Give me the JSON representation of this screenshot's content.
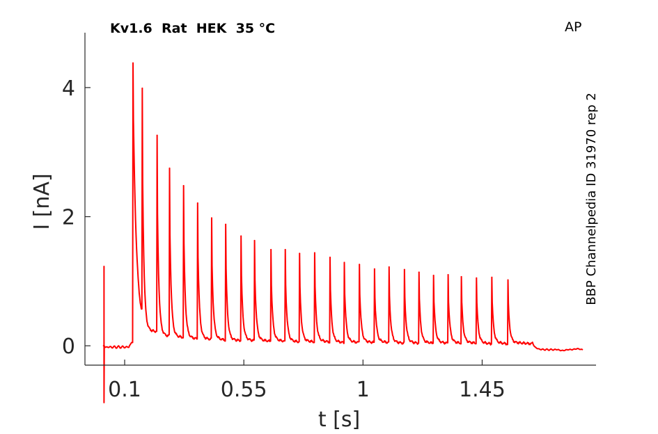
{
  "chart_data": {
    "type": "line",
    "title": "Kv1.6  Rat  HEK  35 °C",
    "corner_label": "AP",
    "side_label": "BBP Channelpedia ID 31970 rep 2",
    "xlabel": "t [s]",
    "ylabel": "I [nA]",
    "xlim": [
      -0.05,
      1.88
    ],
    "ylim": [
      -0.3,
      4.85
    ],
    "xticks": [
      0.1,
      0.55,
      1,
      1.45
    ],
    "xtick_labels": [
      "0.1",
      "0.55",
      "1",
      "1.45"
    ],
    "yticks": [
      0,
      2,
      4
    ],
    "ytick_labels": [
      "0",
      "2",
      "4"
    ],
    "grid": false,
    "color": "#ff0000",
    "baseline_start": 0.0,
    "baseline_end": -0.06,
    "stim_end": 1.64,
    "artifact": {
      "t": 0.022,
      "max": 1.23,
      "min": -0.88
    },
    "series": [
      {
        "spike_times": [
          0.13,
          0.165,
          0.221,
          0.268,
          0.321,
          0.374,
          0.427,
          0.48,
          0.538,
          0.589,
          0.651,
          0.705,
          0.759,
          0.816,
          0.874,
          0.928,
          0.985,
          1.042,
          1.097,
          1.155,
          1.21,
          1.265,
          1.32,
          1.37,
          1.427,
          1.485,
          1.546
        ],
        "spike_peaks": [
          4.38,
          3.99,
          3.26,
          2.75,
          2.48,
          2.21,
          1.98,
          1.88,
          1.7,
          1.63,
          1.49,
          1.49,
          1.43,
          1.44,
          1.37,
          1.29,
          1.26,
          1.19,
          1.22,
          1.18,
          1.14,
          1.09,
          1.1,
          1.07,
          1.05,
          1.06,
          1.02
        ],
        "interspike_floor": [
          0.55,
          0.25,
          0.18,
          0.16,
          0.14,
          0.13,
          0.12,
          0.11,
          0.11,
          0.1,
          0.1,
          0.09,
          0.09,
          0.09,
          0.08,
          0.08,
          0.08,
          0.08,
          0.07,
          0.07,
          0.07,
          0.07,
          0.07,
          0.07,
          0.06,
          0.06,
          0.06
        ]
      }
    ]
  }
}
